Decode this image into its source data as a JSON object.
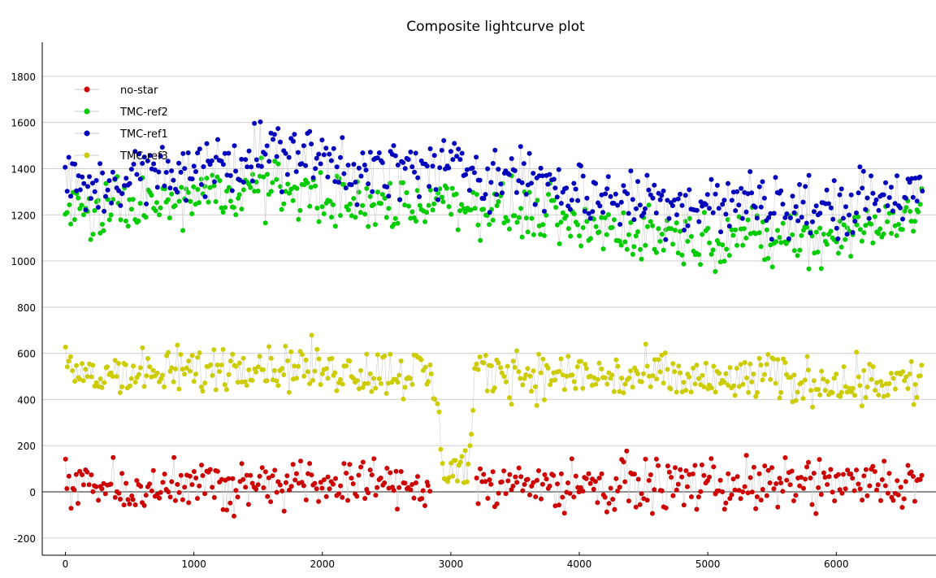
{
  "chart_data": {
    "type": "scatter",
    "title": "Composite lightcurve plot",
    "xlabel": "",
    "ylabel": "",
    "xlim": [
      -180,
      6700
    ],
    "ylim": [
      -250,
      1870
    ],
    "x_ticks": [
      0,
      1000,
      2000,
      3000,
      4000,
      5000,
      6000
    ],
    "y_ticks": [
      -200,
      0,
      200,
      400,
      600,
      800,
      1000,
      1200,
      1400,
      1600,
      1800
    ],
    "grid": "horizontal",
    "legend_position": "top-left",
    "connector_color": "#c8c8c8",
    "series": [
      {
        "name": "no-star",
        "color": "#cc0000",
        "marker": "circle",
        "x": [
          0,
          100,
          200,
          300,
          400,
          500,
          600,
          700,
          800,
          900,
          1000,
          1100,
          1200,
          1300,
          1400,
          1500,
          1600,
          1700,
          1800,
          1900,
          2000,
          2100,
          2200,
          2300,
          2400,
          2500,
          2600,
          2700,
          2800,
          2850,
          3200,
          3300,
          3400,
          3500,
          3600,
          3700,
          3800,
          3900,
          4000,
          4100,
          4200,
          4300,
          4400,
          4500,
          4600,
          4700,
          4800,
          4900,
          5000,
          5100,
          5200,
          5300,
          5400,
          5500,
          5600,
          5700,
          5800,
          5900,
          6000,
          6100,
          6200,
          6300,
          6400,
          6500,
          6600,
          6680
        ],
        "y": [
          30,
          20,
          40,
          20,
          50,
          10,
          40,
          30,
          20,
          50,
          20,
          40,
          30,
          10,
          40,
          50,
          30,
          20,
          40,
          30,
          20,
          40,
          10,
          30,
          50,
          30,
          20,
          40,
          30,
          20,
          40,
          20,
          30,
          50,
          20,
          40,
          30,
          20,
          40,
          30,
          10,
          30,
          40,
          20,
          30,
          50,
          20,
          30,
          40,
          20,
          30,
          40,
          20,
          10,
          30,
          40,
          30,
          20,
          40,
          30,
          20,
          40,
          30,
          20,
          40,
          30
        ],
        "spread": 95
      },
      {
        "name": "TMC-ref2",
        "color": "#00cc00",
        "marker": "circle",
        "x": [
          0,
          100,
          200,
          300,
          400,
          500,
          600,
          700,
          800,
          900,
          1000,
          1100,
          1200,
          1300,
          1400,
          1500,
          1600,
          1700,
          1800,
          1900,
          2000,
          2100,
          2200,
          2300,
          2400,
          2500,
          2600,
          2700,
          2800,
          2900,
          3000,
          3100,
          3200,
          3300,
          3400,
          3500,
          3600,
          3700,
          3800,
          3900,
          4000,
          4100,
          4200,
          4300,
          4400,
          4500,
          4600,
          4700,
          4800,
          4900,
          5000,
          5100,
          5200,
          5300,
          5400,
          5500,
          5600,
          5700,
          5800,
          5900,
          6000,
          6100,
          6200,
          6300,
          6400,
          6500,
          6600,
          6680
        ],
        "y": [
          1200,
          1210,
          1190,
          1220,
          1230,
          1240,
          1230,
          1250,
          1240,
          1260,
          1270,
          1280,
          1290,
          1300,
          1310,
          1320,
          1320,
          1310,
          1300,
          1290,
          1280,
          1270,
          1250,
          1240,
          1230,
          1240,
          1250,
          1250,
          1240,
          1250,
          1260,
          1250,
          1240,
          1230,
          1220,
          1220,
          1210,
          1200,
          1180,
          1170,
          1160,
          1150,
          1140,
          1130,
          1120,
          1110,
          1120,
          1110,
          1100,
          1100,
          1090,
          1110,
          1120,
          1100,
          1100,
          1090,
          1100,
          1100,
          1090,
          1100,
          1110,
          1120,
          1130,
          1150,
          1170,
          1180,
          1190,
          1200
        ],
        "spread": 105
      },
      {
        "name": "TMC-ref1",
        "color": "#0000bb",
        "marker": "circle",
        "x": [
          0,
          100,
          200,
          300,
          400,
          500,
          600,
          700,
          800,
          900,
          1000,
          1100,
          1200,
          1300,
          1400,
          1500,
          1600,
          1700,
          1800,
          1900,
          2000,
          2100,
          2200,
          2300,
          2400,
          2500,
          2600,
          2700,
          2800,
          2900,
          3000,
          3100,
          3200,
          3300,
          3400,
          3500,
          3600,
          3700,
          3800,
          3900,
          4000,
          4100,
          4200,
          4300,
          4400,
          4500,
          4600,
          4700,
          4800,
          4900,
          5000,
          5100,
          5200,
          5300,
          5400,
          5500,
          5600,
          5700,
          5800,
          5900,
          6000,
          6100,
          6200,
          6300,
          6400,
          6500,
          6600,
          6680
        ],
        "y": [
          1370,
          1330,
          1300,
          1320,
          1350,
          1380,
          1380,
          1370,
          1360,
          1380,
          1400,
          1410,
          1430,
          1450,
          1460,
          1470,
          1470,
          1460,
          1450,
          1440,
          1430,
          1420,
          1410,
          1400,
          1390,
          1390,
          1400,
          1410,
          1400,
          1400,
          1410,
          1400,
          1390,
          1380,
          1370,
          1360,
          1350,
          1340,
          1330,
          1320,
          1310,
          1290,
          1280,
          1270,
          1260,
          1250,
          1260,
          1260,
          1250,
          1240,
          1250,
          1240,
          1240,
          1250,
          1260,
          1250,
          1240,
          1230,
          1230,
          1230,
          1240,
          1250,
          1260,
          1270,
          1280,
          1290,
          1300,
          1300
        ],
        "spread": 120
      },
      {
        "name": "TMC-ref3",
        "color": "#cccc00",
        "marker": "circle",
        "x": [
          0,
          100,
          200,
          300,
          400,
          500,
          600,
          700,
          800,
          900,
          1000,
          1100,
          1200,
          1300,
          1400,
          1500,
          1600,
          1700,
          1800,
          1900,
          2000,
          2100,
          2200,
          2300,
          2400,
          2500,
          2600,
          2700,
          2800,
          2850,
          2950,
          3000,
          3050,
          3100,
          3150,
          3200,
          3300,
          3400,
          3500,
          3600,
          3700,
          3800,
          3900,
          4000,
          4100,
          4200,
          4300,
          4400,
          4500,
          4600,
          4700,
          4800,
          4900,
          5000,
          5100,
          5200,
          5300,
          5400,
          5500,
          5600,
          5700,
          5800,
          5900,
          6000,
          6100,
          6200,
          6300,
          6400,
          6500,
          6600,
          6680
        ],
        "y": [
          520,
          510,
          500,
          510,
          520,
          520,
          510,
          500,
          510,
          520,
          530,
          520,
          540,
          550,
          560,
          560,
          540,
          530,
          540,
          550,
          520,
          530,
          520,
          530,
          510,
          520,
          510,
          520,
          510,
          500,
          110,
          120,
          100,
          110,
          120,
          520,
          510,
          530,
          520,
          510,
          500,
          510,
          500,
          510,
          500,
          500,
          490,
          500,
          490,
          500,
          490,
          480,
          490,
          480,
          470,
          480,
          490,
          500,
          490,
          480,
          470,
          480,
          490,
          480,
          470,
          480,
          490,
          480,
          480,
          470,
          480
        ],
        "spread": 95
      }
    ]
  }
}
